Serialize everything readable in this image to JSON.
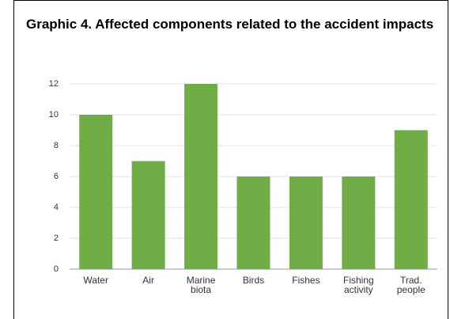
{
  "chart_data": {
    "type": "bar",
    "title": "Graphic 4. Affected components related to the accident impacts",
    "categories": [
      "Water",
      "Air",
      "Marine biota",
      "Birds",
      "Fishes",
      "Fishing activity",
      "Trad. people"
    ],
    "values": [
      10,
      7,
      12,
      6,
      6,
      6,
      9
    ],
    "color": "#70ad47",
    "ylim": [
      0,
      12
    ],
    "yticks": [
      0,
      2,
      4,
      6,
      8,
      10,
      12
    ],
    "grid": true
  }
}
